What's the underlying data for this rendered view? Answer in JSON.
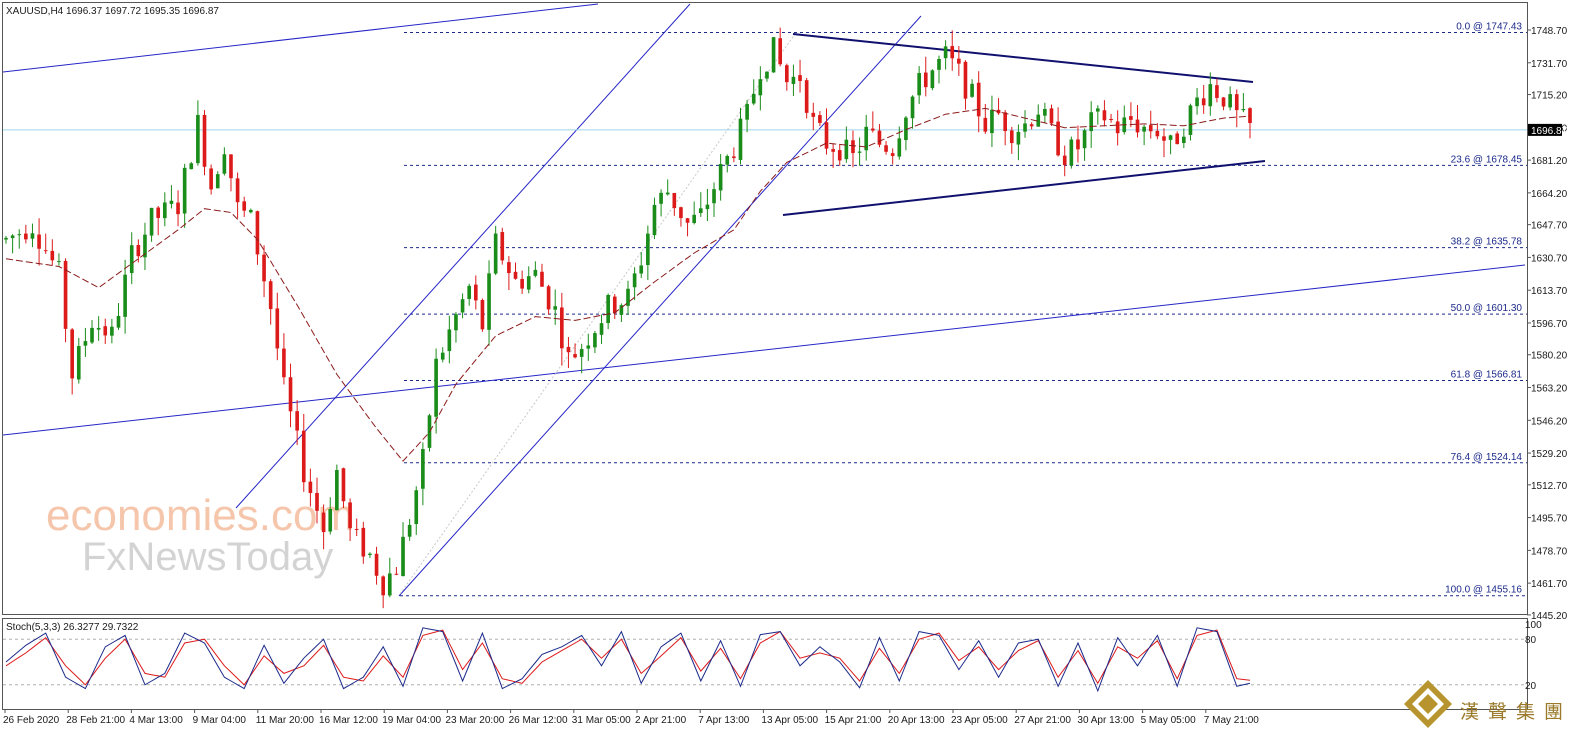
{
  "chart_data": [
    {
      "type": "candlestick",
      "symbol_info": "XAUUSD,H4  1696.37 1697.72 1695.35 1696.87",
      "last_price": "1696.87",
      "last_price_value": 1696.87,
      "ylim": [
        1445.16,
        1748.7
      ],
      "y_ticks": [
        "1748.70",
        "1731.70",
        "1715.20",
        "1698.20",
        "1681.20",
        "1664.20",
        "1647.70",
        "1630.70",
        "1613.70",
        "1596.70",
        "1580.20",
        "1563.20",
        "1546.20",
        "1529.20",
        "1512.70",
        "1495.70",
        "1478.70",
        "1461.70",
        "1445.20"
      ],
      "x_ticks": [
        "26 Feb 2020",
        "28 Feb 21:00",
        "4 Mar 13:00",
        "9 Mar 04:00",
        "11 Mar 20:00",
        "16 Mar 12:00",
        "19 Mar 04:00",
        "23 Mar 20:00",
        "26 Mar 12:00",
        "31 Mar 05:00",
        "2 Apr 21:00",
        "7 Apr 13:00",
        "13 Apr 05:00",
        "15 Apr 21:00",
        "20 Apr 13:00",
        "23 Apr 05:00",
        "27 Apr 21:00",
        "30 Apr 13:00",
        "5 May 05:00",
        "7 May 21:00"
      ],
      "fibonacci": [
        {
          "label": "0.0 @ 1747.43",
          "value": 1747.43
        },
        {
          "label": "23.6 @ 1678.45",
          "value": 1678.45
        },
        {
          "label": "38.2 @ 1635.78",
          "value": 1635.78
        },
        {
          "label": "50.0 @ 1601.30",
          "value": 1601.3
        },
        {
          "label": "61.8 @ 1566.81",
          "value": 1566.81
        },
        {
          "label": "76.4 @ 1524.14",
          "value": 1524.14
        },
        {
          "label": "100.0 @ 1455.16",
          "value": 1455.16
        }
      ],
      "price_path": [
        [
          0,
          1640
        ],
        [
          4,
          1648
        ],
        [
          8,
          1622
        ],
        [
          10,
          1570
        ],
        [
          13,
          1598
        ],
        [
          16,
          1590
        ],
        [
          19,
          1632
        ],
        [
          22,
          1650
        ],
        [
          26,
          1658
        ],
        [
          29,
          1700
        ],
        [
          31,
          1668
        ],
        [
          33,
          1690
        ],
        [
          35,
          1656
        ],
        [
          37,
          1650
        ],
        [
          40,
          1605
        ],
        [
          42,
          1562
        ],
        [
          45,
          1520
        ],
        [
          48,
          1490
        ],
        [
          50,
          1520
        ],
        [
          52,
          1488
        ],
        [
          55,
          1476
        ],
        [
          57,
          1462
        ],
        [
          59,
          1470
        ],
        [
          61,
          1495
        ],
        [
          63,
          1525
        ],
        [
          65,
          1575
        ],
        [
          68,
          1600
        ],
        [
          70,
          1615
        ],
        [
          72,
          1595
        ],
        [
          74,
          1638
        ],
        [
          77,
          1618
        ],
        [
          80,
          1622
        ],
        [
          83,
          1603
        ],
        [
          85,
          1578
        ],
        [
          87,
          1585
        ],
        [
          89,
          1595
        ],
        [
          91,
          1605
        ],
        [
          94,
          1610
        ],
        [
          96,
          1630
        ],
        [
          98,
          1658
        ],
        [
          100,
          1665
        ],
        [
          103,
          1648
        ],
        [
          105,
          1652
        ],
        [
          108,
          1675
        ],
        [
          110,
          1688
        ],
        [
          112,
          1704
        ],
        [
          114,
          1730
        ],
        [
          116,
          1738
        ],
        [
          118,
          1722
        ],
        [
          120,
          1725
        ],
        [
          122,
          1700
        ],
        [
          124,
          1690
        ],
        [
          126,
          1688
        ],
        [
          128,
          1682
        ],
        [
          130,
          1695
        ],
        [
          132,
          1690
        ],
        [
          134,
          1688
        ],
        [
          136,
          1708
        ],
        [
          138,
          1720
        ],
        [
          140,
          1728
        ],
        [
          142,
          1735
        ],
        [
          144,
          1726
        ],
        [
          146,
          1714
        ],
        [
          148,
          1700
        ],
        [
          150,
          1705
        ],
        [
          152,
          1697
        ],
        [
          154,
          1700
        ],
        [
          156,
          1708
        ],
        [
          158,
          1695
        ],
        [
          160,
          1684
        ],
        [
          162,
          1688
        ],
        [
          164,
          1700
        ],
        [
          166,
          1704
        ],
        [
          168,
          1698
        ],
        [
          170,
          1702
        ],
        [
          172,
          1698
        ],
        [
          174,
          1697
        ],
        [
          176,
          1688
        ],
        [
          178,
          1700
        ],
        [
          180,
          1712
        ],
        [
          182,
          1720
        ],
        [
          184,
          1714
        ],
        [
          186,
          1704
        ],
        [
          188,
          1698
        ]
      ],
      "moving_average_path": [
        [
          0,
          1630
        ],
        [
          8,
          1626
        ],
        [
          14,
          1615
        ],
        [
          20,
          1630
        ],
        [
          26,
          1645
        ],
        [
          30,
          1656
        ],
        [
          34,
          1654
        ],
        [
          38,
          1640
        ],
        [
          44,
          1606
        ],
        [
          50,
          1570
        ],
        [
          56,
          1542
        ],
        [
          60,
          1525
        ],
        [
          64,
          1540
        ],
        [
          68,
          1565
        ],
        [
          74,
          1590
        ],
        [
          80,
          1600
        ],
        [
          86,
          1598
        ],
        [
          92,
          1602
        ],
        [
          98,
          1618
        ],
        [
          104,
          1633
        ],
        [
          110,
          1645
        ],
        [
          114,
          1665
        ],
        [
          118,
          1680
        ],
        [
          124,
          1690
        ],
        [
          130,
          1688
        ],
        [
          136,
          1697
        ],
        [
          142,
          1705
        ],
        [
          148,
          1708
        ],
        [
          154,
          1703
        ],
        [
          160,
          1698
        ],
        [
          166,
          1699
        ],
        [
          172,
          1700
        ],
        [
          178,
          1699
        ],
        [
          184,
          1703
        ],
        [
          188,
          1704
        ]
      ],
      "stochastic": {
        "label": "Stoch(5,3,3) 26.3277 29.7322",
        "levels": [
          "100",
          "80",
          "20"
        ],
        "k_path": [
          [
            0,
            50
          ],
          [
            3,
            72
          ],
          [
            6,
            88
          ],
          [
            9,
            30
          ],
          [
            12,
            15
          ],
          [
            15,
            70
          ],
          [
            18,
            85
          ],
          [
            21,
            20
          ],
          [
            24,
            35
          ],
          [
            27,
            88
          ],
          [
            30,
            75
          ],
          [
            33,
            30
          ],
          [
            36,
            15
          ],
          [
            39,
            72
          ],
          [
            42,
            22
          ],
          [
            45,
            55
          ],
          [
            48,
            80
          ],
          [
            51,
            15
          ],
          [
            54,
            30
          ],
          [
            57,
            70
          ],
          [
            60,
            18
          ],
          [
            63,
            95
          ],
          [
            66,
            90
          ],
          [
            69,
            25
          ],
          [
            72,
            88
          ],
          [
            75,
            15
          ],
          [
            78,
            28
          ],
          [
            81,
            60
          ],
          [
            84,
            70
          ],
          [
            87,
            85
          ],
          [
            90,
            45
          ],
          [
            93,
            90
          ],
          [
            96,
            22
          ],
          [
            99,
            70
          ],
          [
            102,
            88
          ],
          [
            105,
            25
          ],
          [
            108,
            78
          ],
          [
            111,
            18
          ],
          [
            114,
            86
          ],
          [
            117,
            90
          ],
          [
            120,
            45
          ],
          [
            123,
            70
          ],
          [
            126,
            50
          ],
          [
            129,
            16
          ],
          [
            132,
            82
          ],
          [
            135,
            25
          ],
          [
            138,
            90
          ],
          [
            141,
            85
          ],
          [
            144,
            40
          ],
          [
            147,
            78
          ],
          [
            150,
            30
          ],
          [
            153,
            75
          ],
          [
            156,
            80
          ],
          [
            159,
            18
          ],
          [
            162,
            75
          ],
          [
            165,
            12
          ],
          [
            168,
            82
          ],
          [
            171,
            45
          ],
          [
            174,
            85
          ],
          [
            177,
            18
          ],
          [
            180,
            95
          ],
          [
            183,
            90
          ],
          [
            186,
            18
          ],
          [
            188,
            22
          ]
        ],
        "d_path": [
          [
            0,
            45
          ],
          [
            3,
            62
          ],
          [
            6,
            82
          ],
          [
            9,
            45
          ],
          [
            12,
            20
          ],
          [
            15,
            55
          ],
          [
            18,
            80
          ],
          [
            21,
            35
          ],
          [
            24,
            30
          ],
          [
            27,
            75
          ],
          [
            30,
            80
          ],
          [
            33,
            45
          ],
          [
            36,
            20
          ],
          [
            39,
            58
          ],
          [
            42,
            35
          ],
          [
            45,
            45
          ],
          [
            48,
            72
          ],
          [
            51,
            30
          ],
          [
            54,
            25
          ],
          [
            57,
            58
          ],
          [
            60,
            30
          ],
          [
            63,
            85
          ],
          [
            66,
            92
          ],
          [
            69,
            40
          ],
          [
            72,
            75
          ],
          [
            75,
            28
          ],
          [
            78,
            22
          ],
          [
            81,
            50
          ],
          [
            84,
            65
          ],
          [
            87,
            80
          ],
          [
            90,
            55
          ],
          [
            93,
            80
          ],
          [
            96,
            35
          ],
          [
            99,
            58
          ],
          [
            102,
            82
          ],
          [
            105,
            38
          ],
          [
            108,
            68
          ],
          [
            111,
            28
          ],
          [
            114,
            75
          ],
          [
            117,
            90
          ],
          [
            120,
            55
          ],
          [
            123,
            62
          ],
          [
            126,
            55
          ],
          [
            129,
            25
          ],
          [
            132,
            68
          ],
          [
            135,
            35
          ],
          [
            138,
            80
          ],
          [
            141,
            88
          ],
          [
            144,
            52
          ],
          [
            147,
            70
          ],
          [
            150,
            40
          ],
          [
            153,
            65
          ],
          [
            156,
            78
          ],
          [
            159,
            30
          ],
          [
            162,
            65
          ],
          [
            165,
            22
          ],
          [
            168,
            70
          ],
          [
            171,
            55
          ],
          [
            174,
            78
          ],
          [
            177,
            28
          ],
          [
            180,
            85
          ],
          [
            183,
            92
          ],
          [
            186,
            28
          ],
          [
            188,
            26
          ]
        ]
      }
    }
  ],
  "watermark": {
    "line1": "economies.com",
    "line2": "FxNewsToday"
  },
  "logo": {
    "text": "漢聲集團"
  },
  "colors": {
    "bull": "#1a8c1a",
    "bear": "#dd1a1a",
    "ma": "#8b1a1a",
    "trend": "#2626c8",
    "triangle": "#10106e",
    "fib": "#1c2a8a",
    "price_line": "#9fd4ee",
    "stoch_k": "#1c2a8a",
    "stoch_d": "#dd1a1a"
  }
}
